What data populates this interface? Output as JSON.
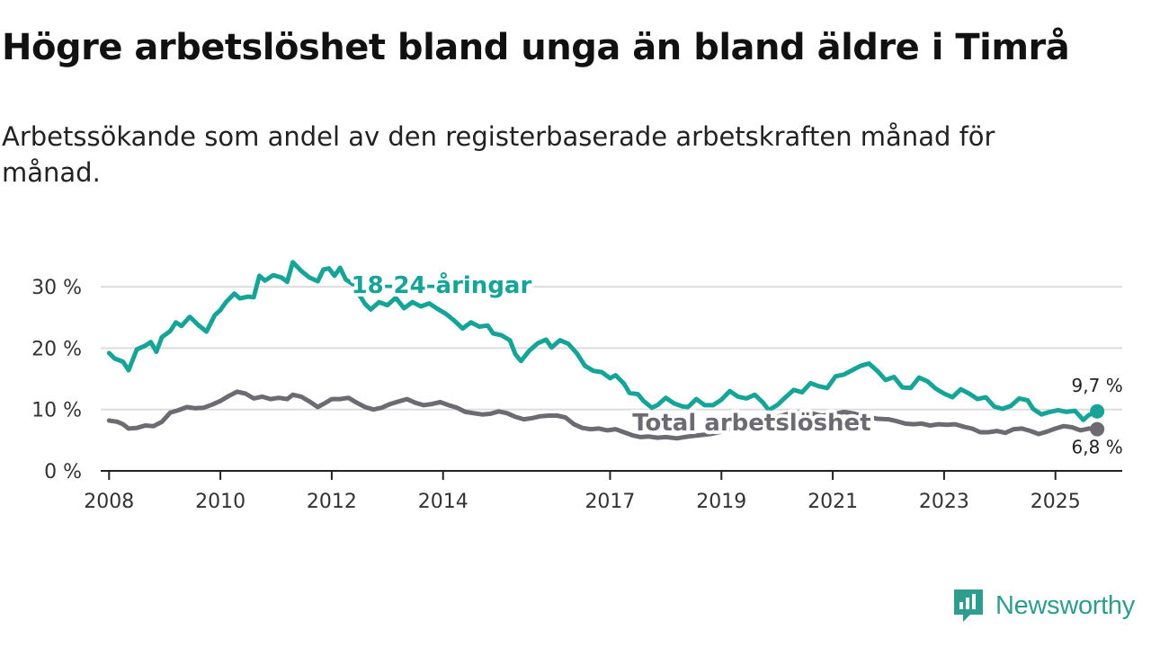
{
  "title": "Högre arbetslöshet bland unga än bland äldre i Timrå",
  "subtitle": "Arbetssökande som andel av den registerbaserade arbetskraften månad för månad.",
  "brand": {
    "name": "Newsworthy",
    "color": "#2e9c8e",
    "icon": "newsworthy-logo-icon"
  },
  "colors": {
    "youth": "#16a398",
    "total": "#6d6b72",
    "grid": "#dddddd",
    "axis": "#222222"
  },
  "chart_data": {
    "type": "line",
    "title": "Högre arbetslöshet bland unga än bland äldre i Timrå",
    "ylabel": "",
    "xlabel": "",
    "ylim": [
      0,
      35
    ],
    "xlim": [
      2007.85,
      2026.2
    ],
    "yticks": [
      {
        "value": 0,
        "label": "0 %"
      },
      {
        "value": 10,
        "label": "10 %"
      },
      {
        "value": 20,
        "label": "20 %"
      },
      {
        "value": 30,
        "label": "30 %"
      }
    ],
    "xticks": [
      {
        "value": 2008,
        "label": "2008"
      },
      {
        "value": 2010,
        "label": "2010"
      },
      {
        "value": 2012,
        "label": "2012"
      },
      {
        "value": 2014,
        "label": "2014"
      },
      {
        "value": 2017,
        "label": "2017"
      },
      {
        "value": 2019,
        "label": "2019"
      },
      {
        "value": 2021,
        "label": "2021"
      },
      {
        "value": 2023,
        "label": "2023"
      },
      {
        "value": 2025,
        "label": "2025"
      }
    ],
    "series": [
      {
        "name": "18-24-åringar",
        "color": "#16a398",
        "end_label": "9,7 %",
        "points": [
          [
            2008.0,
            19.2
          ],
          [
            2008.1,
            18.3
          ],
          [
            2008.25,
            17.8
          ],
          [
            2008.35,
            16.4
          ],
          [
            2008.5,
            19.8
          ],
          [
            2008.65,
            20.4
          ],
          [
            2008.75,
            21.0
          ],
          [
            2008.85,
            19.4
          ],
          [
            2008.95,
            21.8
          ],
          [
            2009.1,
            22.8
          ],
          [
            2009.2,
            24.2
          ],
          [
            2009.3,
            23.6
          ],
          [
            2009.45,
            25.1
          ],
          [
            2009.6,
            23.8
          ],
          [
            2009.75,
            22.7
          ],
          [
            2009.9,
            25.4
          ],
          [
            2010.0,
            26.2
          ],
          [
            2010.1,
            27.5
          ],
          [
            2010.25,
            28.9
          ],
          [
            2010.35,
            28.1
          ],
          [
            2010.5,
            28.4
          ],
          [
            2010.6,
            28.3
          ],
          [
            2010.7,
            31.8
          ],
          [
            2010.8,
            31.0
          ],
          [
            2010.95,
            31.9
          ],
          [
            2011.1,
            31.5
          ],
          [
            2011.2,
            30.8
          ],
          [
            2011.3,
            34.0
          ],
          [
            2011.45,
            32.6
          ],
          [
            2011.6,
            31.5
          ],
          [
            2011.75,
            30.9
          ],
          [
            2011.85,
            32.8
          ],
          [
            2011.95,
            33.0
          ],
          [
            2012.05,
            31.8
          ],
          [
            2012.15,
            33.1
          ],
          [
            2012.25,
            31.2
          ],
          [
            2012.4,
            30.3
          ],
          [
            2012.5,
            28.6
          ],
          [
            2012.6,
            27.2
          ],
          [
            2012.7,
            26.3
          ],
          [
            2012.85,
            27.5
          ],
          [
            2013.0,
            27.0
          ],
          [
            2013.15,
            28.2
          ],
          [
            2013.3,
            26.5
          ],
          [
            2013.45,
            27.5
          ],
          [
            2013.6,
            26.8
          ],
          [
            2013.75,
            27.3
          ],
          [
            2013.9,
            26.4
          ],
          [
            2014.05,
            25.6
          ],
          [
            2014.2,
            24.5
          ],
          [
            2014.35,
            23.2
          ],
          [
            2014.5,
            24.2
          ],
          [
            2014.65,
            23.5
          ],
          [
            2014.8,
            23.7
          ],
          [
            2014.9,
            22.4
          ],
          [
            2015.05,
            22.1
          ],
          [
            2015.2,
            21.3
          ],
          [
            2015.3,
            19.0
          ],
          [
            2015.4,
            17.9
          ],
          [
            2015.55,
            19.6
          ],
          [
            2015.7,
            20.8
          ],
          [
            2015.85,
            21.4
          ],
          [
            2015.95,
            20.1
          ],
          [
            2016.1,
            21.3
          ],
          [
            2016.25,
            20.7
          ],
          [
            2016.4,
            19.2
          ],
          [
            2016.55,
            17.1
          ],
          [
            2016.7,
            16.3
          ],
          [
            2016.85,
            16.1
          ],
          [
            2017.0,
            15.1
          ],
          [
            2017.1,
            15.6
          ],
          [
            2017.25,
            14.2
          ],
          [
            2017.35,
            12.7
          ],
          [
            2017.5,
            12.5
          ],
          [
            2017.6,
            11.4
          ],
          [
            2017.75,
            10.3
          ],
          [
            2017.85,
            10.7
          ],
          [
            2018.0,
            11.9
          ],
          [
            2018.15,
            11.0
          ],
          [
            2018.3,
            10.5
          ],
          [
            2018.4,
            10.4
          ],
          [
            2018.55,
            11.7
          ],
          [
            2018.7,
            10.7
          ],
          [
            2018.85,
            10.7
          ],
          [
            2019.0,
            11.6
          ],
          [
            2019.15,
            13.0
          ],
          [
            2019.3,
            12.1
          ],
          [
            2019.45,
            11.8
          ],
          [
            2019.6,
            12.4
          ],
          [
            2019.75,
            11.1
          ],
          [
            2019.85,
            9.9
          ],
          [
            2020.0,
            10.7
          ],
          [
            2020.15,
            12.0
          ],
          [
            2020.3,
            13.2
          ],
          [
            2020.45,
            12.8
          ],
          [
            2020.6,
            14.3
          ],
          [
            2020.75,
            13.8
          ],
          [
            2020.9,
            13.5
          ],
          [
            2021.05,
            15.4
          ],
          [
            2021.2,
            15.7
          ],
          [
            2021.35,
            16.4
          ],
          [
            2021.5,
            17.1
          ],
          [
            2021.65,
            17.5
          ],
          [
            2021.8,
            16.3
          ],
          [
            2021.95,
            14.8
          ],
          [
            2022.1,
            15.3
          ],
          [
            2022.25,
            13.6
          ],
          [
            2022.4,
            13.5
          ],
          [
            2022.55,
            15.2
          ],
          [
            2022.7,
            14.6
          ],
          [
            2022.85,
            13.4
          ],
          [
            2023.0,
            12.6
          ],
          [
            2023.15,
            12.0
          ],
          [
            2023.3,
            13.3
          ],
          [
            2023.45,
            12.6
          ],
          [
            2023.6,
            11.7
          ],
          [
            2023.75,
            12.0
          ],
          [
            2023.9,
            10.5
          ],
          [
            2024.05,
            10.1
          ],
          [
            2024.2,
            10.6
          ],
          [
            2024.35,
            11.8
          ],
          [
            2024.5,
            11.5
          ],
          [
            2024.6,
            10.1
          ],
          [
            2024.75,
            9.2
          ],
          [
            2024.9,
            9.6
          ],
          [
            2025.05,
            9.9
          ],
          [
            2025.2,
            9.6
          ],
          [
            2025.35,
            9.8
          ],
          [
            2025.5,
            8.3
          ],
          [
            2025.6,
            9.1
          ],
          [
            2025.75,
            9.7
          ]
        ]
      },
      {
        "name": "Total arbetslöshet",
        "color": "#6d6b72",
        "end_label": "6,8 %",
        "points": [
          [
            2008.0,
            8.2
          ],
          [
            2008.15,
            8.0
          ],
          [
            2008.25,
            7.6
          ],
          [
            2008.35,
            6.9
          ],
          [
            2008.5,
            7.0
          ],
          [
            2008.65,
            7.4
          ],
          [
            2008.8,
            7.3
          ],
          [
            2008.95,
            8.0
          ],
          [
            2009.1,
            9.5
          ],
          [
            2009.25,
            9.9
          ],
          [
            2009.4,
            10.4
          ],
          [
            2009.55,
            10.2
          ],
          [
            2009.7,
            10.3
          ],
          [
            2009.85,
            10.8
          ],
          [
            2010.0,
            11.4
          ],
          [
            2010.15,
            12.2
          ],
          [
            2010.3,
            12.9
          ],
          [
            2010.45,
            12.6
          ],
          [
            2010.6,
            11.8
          ],
          [
            2010.75,
            12.1
          ],
          [
            2010.9,
            11.7
          ],
          [
            2011.05,
            11.9
          ],
          [
            2011.2,
            11.7
          ],
          [
            2011.3,
            12.4
          ],
          [
            2011.45,
            12.1
          ],
          [
            2011.6,
            11.3
          ],
          [
            2011.75,
            10.4
          ],
          [
            2011.85,
            10.9
          ],
          [
            2012.0,
            11.7
          ],
          [
            2012.15,
            11.7
          ],
          [
            2012.3,
            11.9
          ],
          [
            2012.45,
            11.1
          ],
          [
            2012.6,
            10.4
          ],
          [
            2012.75,
            10.0
          ],
          [
            2012.9,
            10.3
          ],
          [
            2013.05,
            10.9
          ],
          [
            2013.2,
            11.3
          ],
          [
            2013.35,
            11.7
          ],
          [
            2013.5,
            11.1
          ],
          [
            2013.65,
            10.7
          ],
          [
            2013.8,
            10.9
          ],
          [
            2013.95,
            11.2
          ],
          [
            2014.1,
            10.7
          ],
          [
            2014.25,
            10.3
          ],
          [
            2014.4,
            9.6
          ],
          [
            2014.55,
            9.4
          ],
          [
            2014.7,
            9.2
          ],
          [
            2014.85,
            9.3
          ],
          [
            2015.0,
            9.7
          ],
          [
            2015.15,
            9.4
          ],
          [
            2015.3,
            8.8
          ],
          [
            2015.45,
            8.4
          ],
          [
            2015.6,
            8.6
          ],
          [
            2015.75,
            8.9
          ],
          [
            2015.9,
            9.0
          ],
          [
            2016.05,
            9.0
          ],
          [
            2016.2,
            8.7
          ],
          [
            2016.35,
            7.6
          ],
          [
            2016.5,
            7.0
          ],
          [
            2016.65,
            6.8
          ],
          [
            2016.8,
            6.9
          ],
          [
            2016.95,
            6.6
          ],
          [
            2017.1,
            6.8
          ],
          [
            2017.25,
            6.3
          ],
          [
            2017.4,
            5.8
          ],
          [
            2017.55,
            5.5
          ],
          [
            2017.7,
            5.6
          ],
          [
            2017.85,
            5.4
          ],
          [
            2018.0,
            5.5
          ],
          [
            2018.2,
            5.3
          ],
          [
            2018.4,
            5.6
          ],
          [
            2018.6,
            5.8
          ],
          [
            2018.8,
            6.0
          ],
          [
            2019.0,
            6.4
          ],
          [
            2019.2,
            6.9
          ],
          [
            2019.4,
            7.4
          ],
          [
            2019.6,
            7.8
          ],
          [
            2019.8,
            8.3
          ],
          [
            2020.0,
            8.8
          ],
          [
            2020.2,
            9.3
          ],
          [
            2020.4,
            9.6
          ],
          [
            2020.6,
            9.4
          ],
          [
            2020.8,
            9.0
          ],
          [
            2021.0,
            9.2
          ],
          [
            2021.2,
            9.6
          ],
          [
            2021.4,
            9.3
          ],
          [
            2021.6,
            8.8
          ],
          [
            2021.8,
            8.5
          ],
          [
            2022.0,
            8.4
          ],
          [
            2022.15,
            8.1
          ],
          [
            2022.3,
            7.7
          ],
          [
            2022.45,
            7.6
          ],
          [
            2022.6,
            7.7
          ],
          [
            2022.75,
            7.4
          ],
          [
            2022.9,
            7.6
          ],
          [
            2023.05,
            7.5
          ],
          [
            2023.2,
            7.6
          ],
          [
            2023.35,
            7.2
          ],
          [
            2023.5,
            6.9
          ],
          [
            2023.65,
            6.3
          ],
          [
            2023.8,
            6.3
          ],
          [
            2023.95,
            6.5
          ],
          [
            2024.1,
            6.2
          ],
          [
            2024.25,
            6.8
          ],
          [
            2024.4,
            6.9
          ],
          [
            2024.55,
            6.5
          ],
          [
            2024.7,
            6.0
          ],
          [
            2024.85,
            6.4
          ],
          [
            2025.0,
            6.9
          ],
          [
            2025.15,
            7.3
          ],
          [
            2025.3,
            7.1
          ],
          [
            2025.45,
            6.6
          ],
          [
            2025.6,
            6.9
          ],
          [
            2025.75,
            6.8
          ]
        ]
      }
    ],
    "annotations": [
      {
        "series": 0,
        "text": "18-24-åringar",
        "x": 2012.35,
        "y": 29.0
      },
      {
        "series": 1,
        "text": "Total arbetslöshet",
        "x": 2017.4,
        "y": 6.6
      }
    ]
  }
}
